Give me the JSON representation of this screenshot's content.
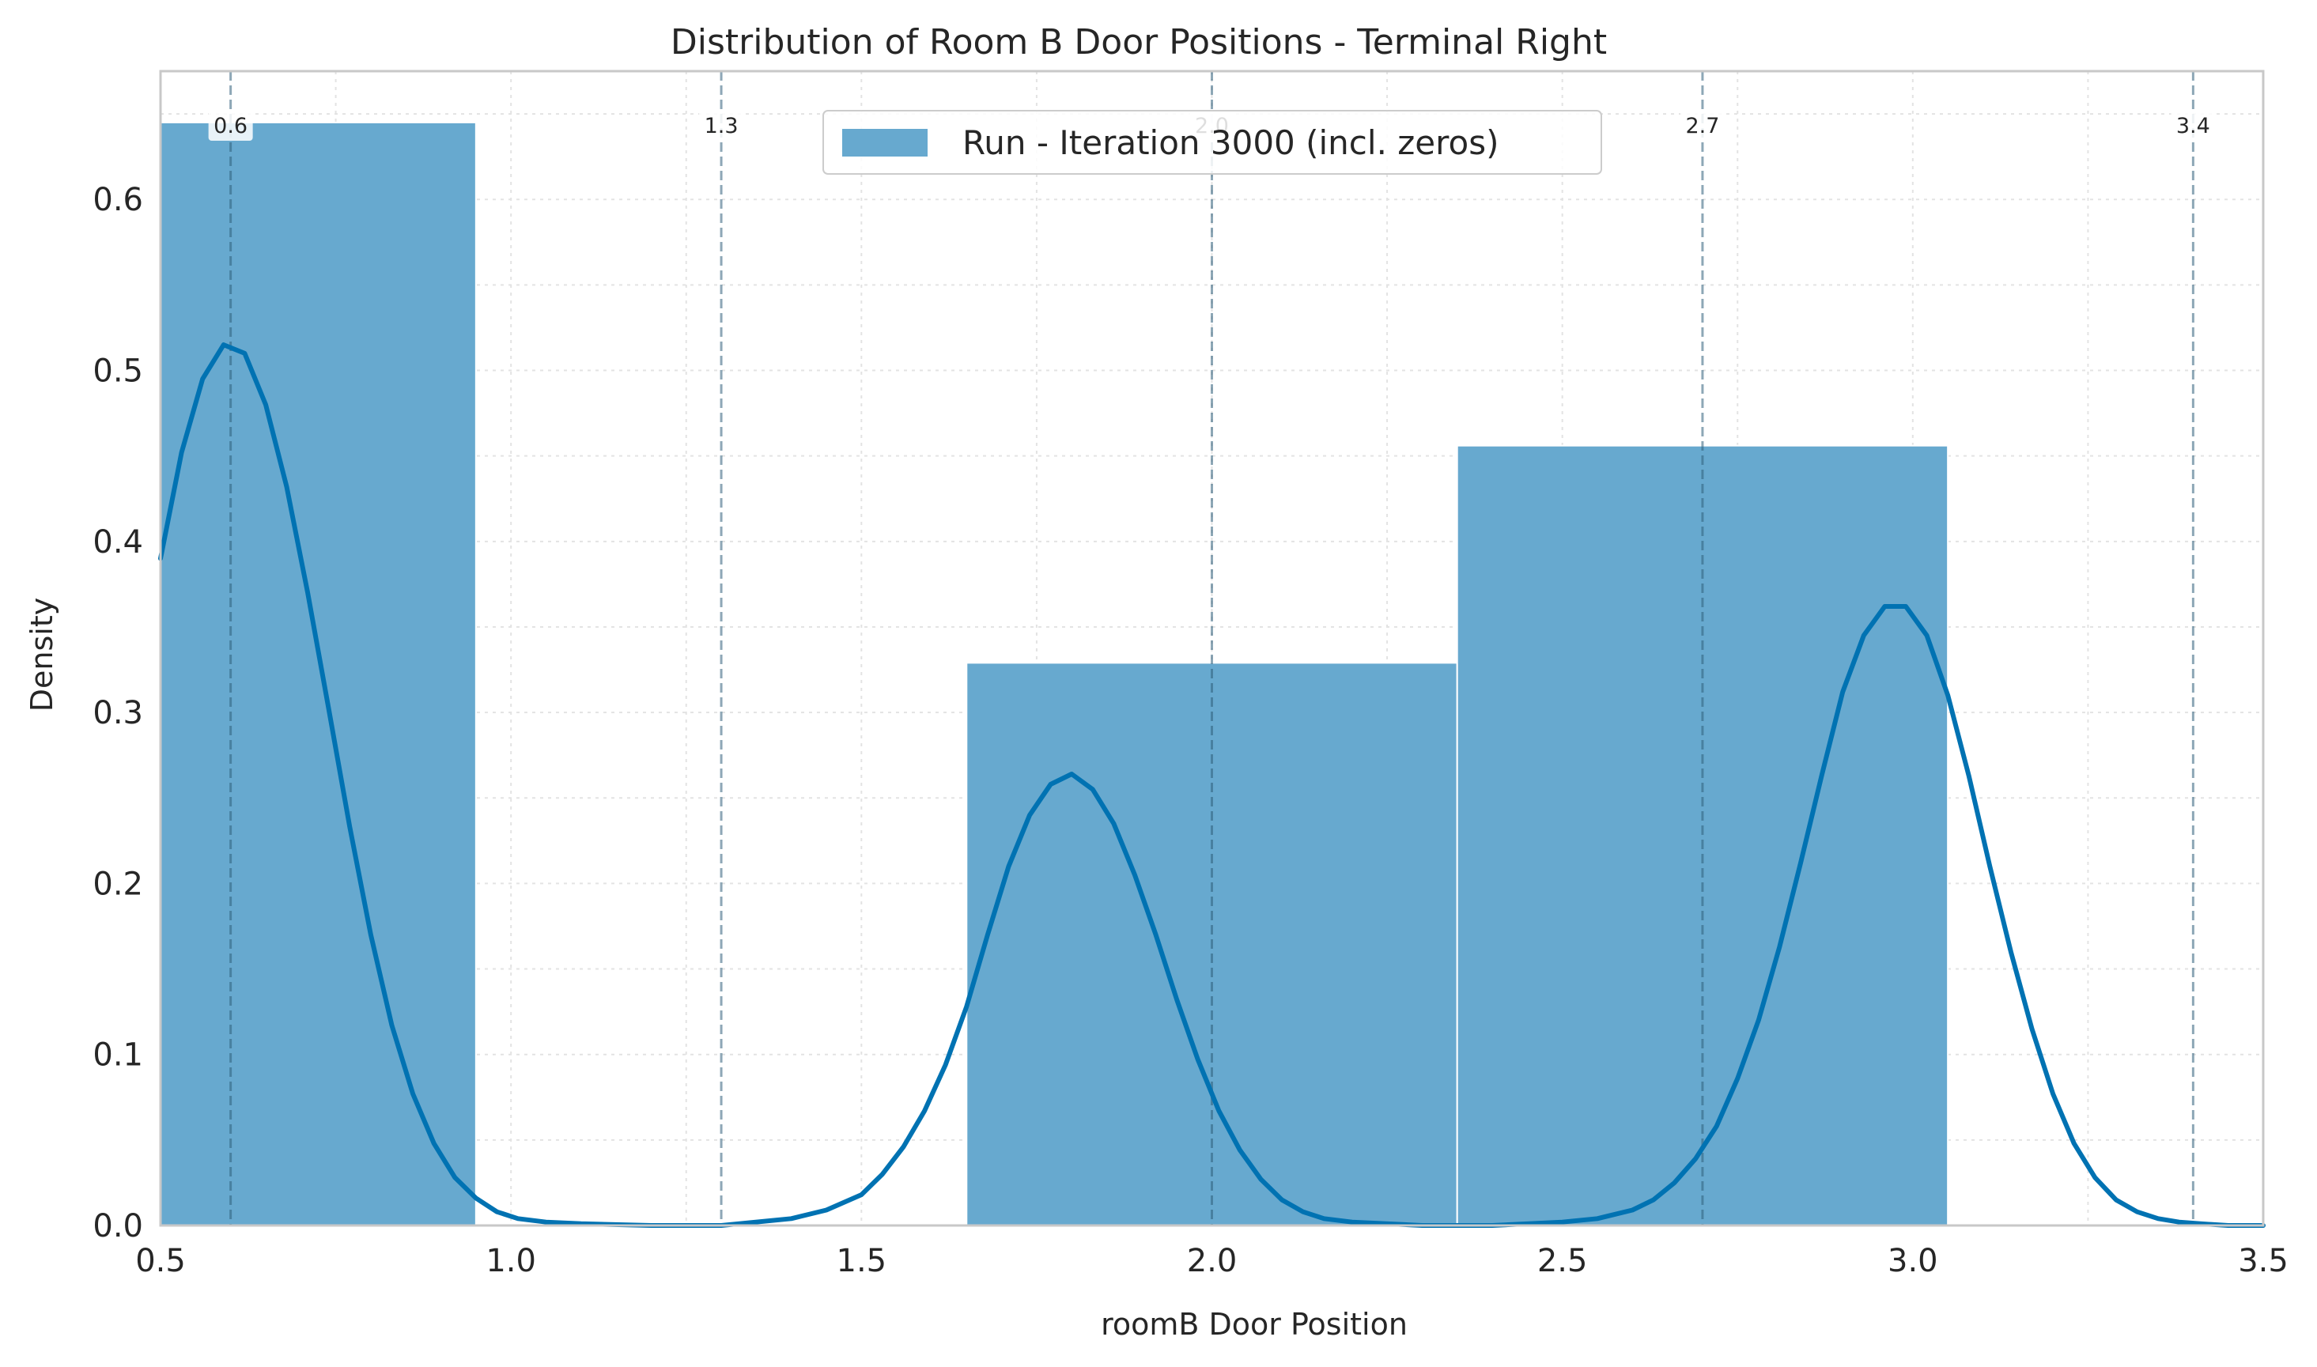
{
  "chart_data": {
    "type": "bar",
    "title": "Distribution of Room B Door Positions - Terminal Right",
    "xlabel": "roomB Door Position",
    "ylabel": "Density",
    "xlim": [
      0.5,
      3.5
    ],
    "ylim": [
      0,
      0.675
    ],
    "xticks": [
      "0.5",
      "1.0",
      "1.5",
      "2.0",
      "2.5",
      "3.0",
      "3.5"
    ],
    "xtick_values": [
      0.5,
      1.0,
      1.5,
      2.0,
      2.5,
      3.0,
      3.5
    ],
    "yticks": [
      "0.0",
      "0.1",
      "0.2",
      "0.3",
      "0.4",
      "0.5",
      "0.6"
    ],
    "ytick_values": [
      0.0,
      0.1,
      0.2,
      0.3,
      0.4,
      0.5,
      0.6
    ],
    "grid": true,
    "legend_position": "top-center",
    "series": [
      {
        "name": "Run - Iteration 3000 (incl. zeros)",
        "kind": "histogram",
        "color": "#67a9cf",
        "bins": [
          {
            "x0": 0.25,
            "x1": 0.95,
            "value": 0.645
          },
          {
            "x0": 1.65,
            "x1": 2.35,
            "value": 0.329
          },
          {
            "x0": 2.35,
            "x1": 3.05,
            "value": 0.456
          }
        ]
      },
      {
        "kind": "kde",
        "color": "#0072b2",
        "x": [
          0.5,
          0.53,
          0.56,
          0.59,
          0.62,
          0.65,
          0.68,
          0.71,
          0.74,
          0.77,
          0.8,
          0.83,
          0.86,
          0.89,
          0.92,
          0.95,
          0.98,
          1.01,
          1.05,
          1.1,
          1.2,
          1.3,
          1.4,
          1.45,
          1.5,
          1.53,
          1.56,
          1.59,
          1.62,
          1.65,
          1.68,
          1.71,
          1.74,
          1.77,
          1.8,
          1.83,
          1.86,
          1.89,
          1.92,
          1.95,
          1.98,
          2.01,
          2.04,
          2.07,
          2.1,
          2.13,
          2.16,
          2.2,
          2.3,
          2.4,
          2.5,
          2.55,
          2.6,
          2.63,
          2.66,
          2.69,
          2.72,
          2.75,
          2.78,
          2.81,
          2.84,
          2.87,
          2.9,
          2.93,
          2.96,
          2.99,
          3.02,
          3.05,
          3.08,
          3.11,
          3.14,
          3.17,
          3.2,
          3.23,
          3.26,
          3.29,
          3.32,
          3.35,
          3.38,
          3.41,
          3.45,
          3.5
        ],
        "y": [
          0.39,
          0.452,
          0.495,
          0.515,
          0.51,
          0.48,
          0.432,
          0.37,
          0.302,
          0.233,
          0.17,
          0.117,
          0.077,
          0.048,
          0.028,
          0.016,
          0.008,
          0.004,
          0.002,
          0.001,
          0.0,
          0.0,
          0.004,
          0.009,
          0.018,
          0.03,
          0.046,
          0.067,
          0.094,
          0.128,
          0.17,
          0.21,
          0.24,
          0.258,
          0.264,
          0.255,
          0.235,
          0.205,
          0.17,
          0.132,
          0.097,
          0.067,
          0.044,
          0.027,
          0.015,
          0.008,
          0.004,
          0.002,
          0.0,
          0.0,
          0.002,
          0.004,
          0.009,
          0.015,
          0.025,
          0.039,
          0.058,
          0.086,
          0.12,
          0.163,
          0.212,
          0.263,
          0.312,
          0.345,
          0.362,
          0.362,
          0.345,
          0.31,
          0.263,
          0.21,
          0.16,
          0.115,
          0.077,
          0.048,
          0.028,
          0.015,
          0.008,
          0.004,
          0.002,
          0.001,
          0.0,
          0.0
        ]
      }
    ],
    "vlines": [
      {
        "x": 0.6,
        "label": "0.6"
      },
      {
        "x": 1.3,
        "label": "1.3"
      },
      {
        "x": 2.0,
        "label": "2.0"
      },
      {
        "x": 2.7,
        "label": "2.7"
      },
      {
        "x": 3.4,
        "label": "3.4"
      }
    ]
  }
}
